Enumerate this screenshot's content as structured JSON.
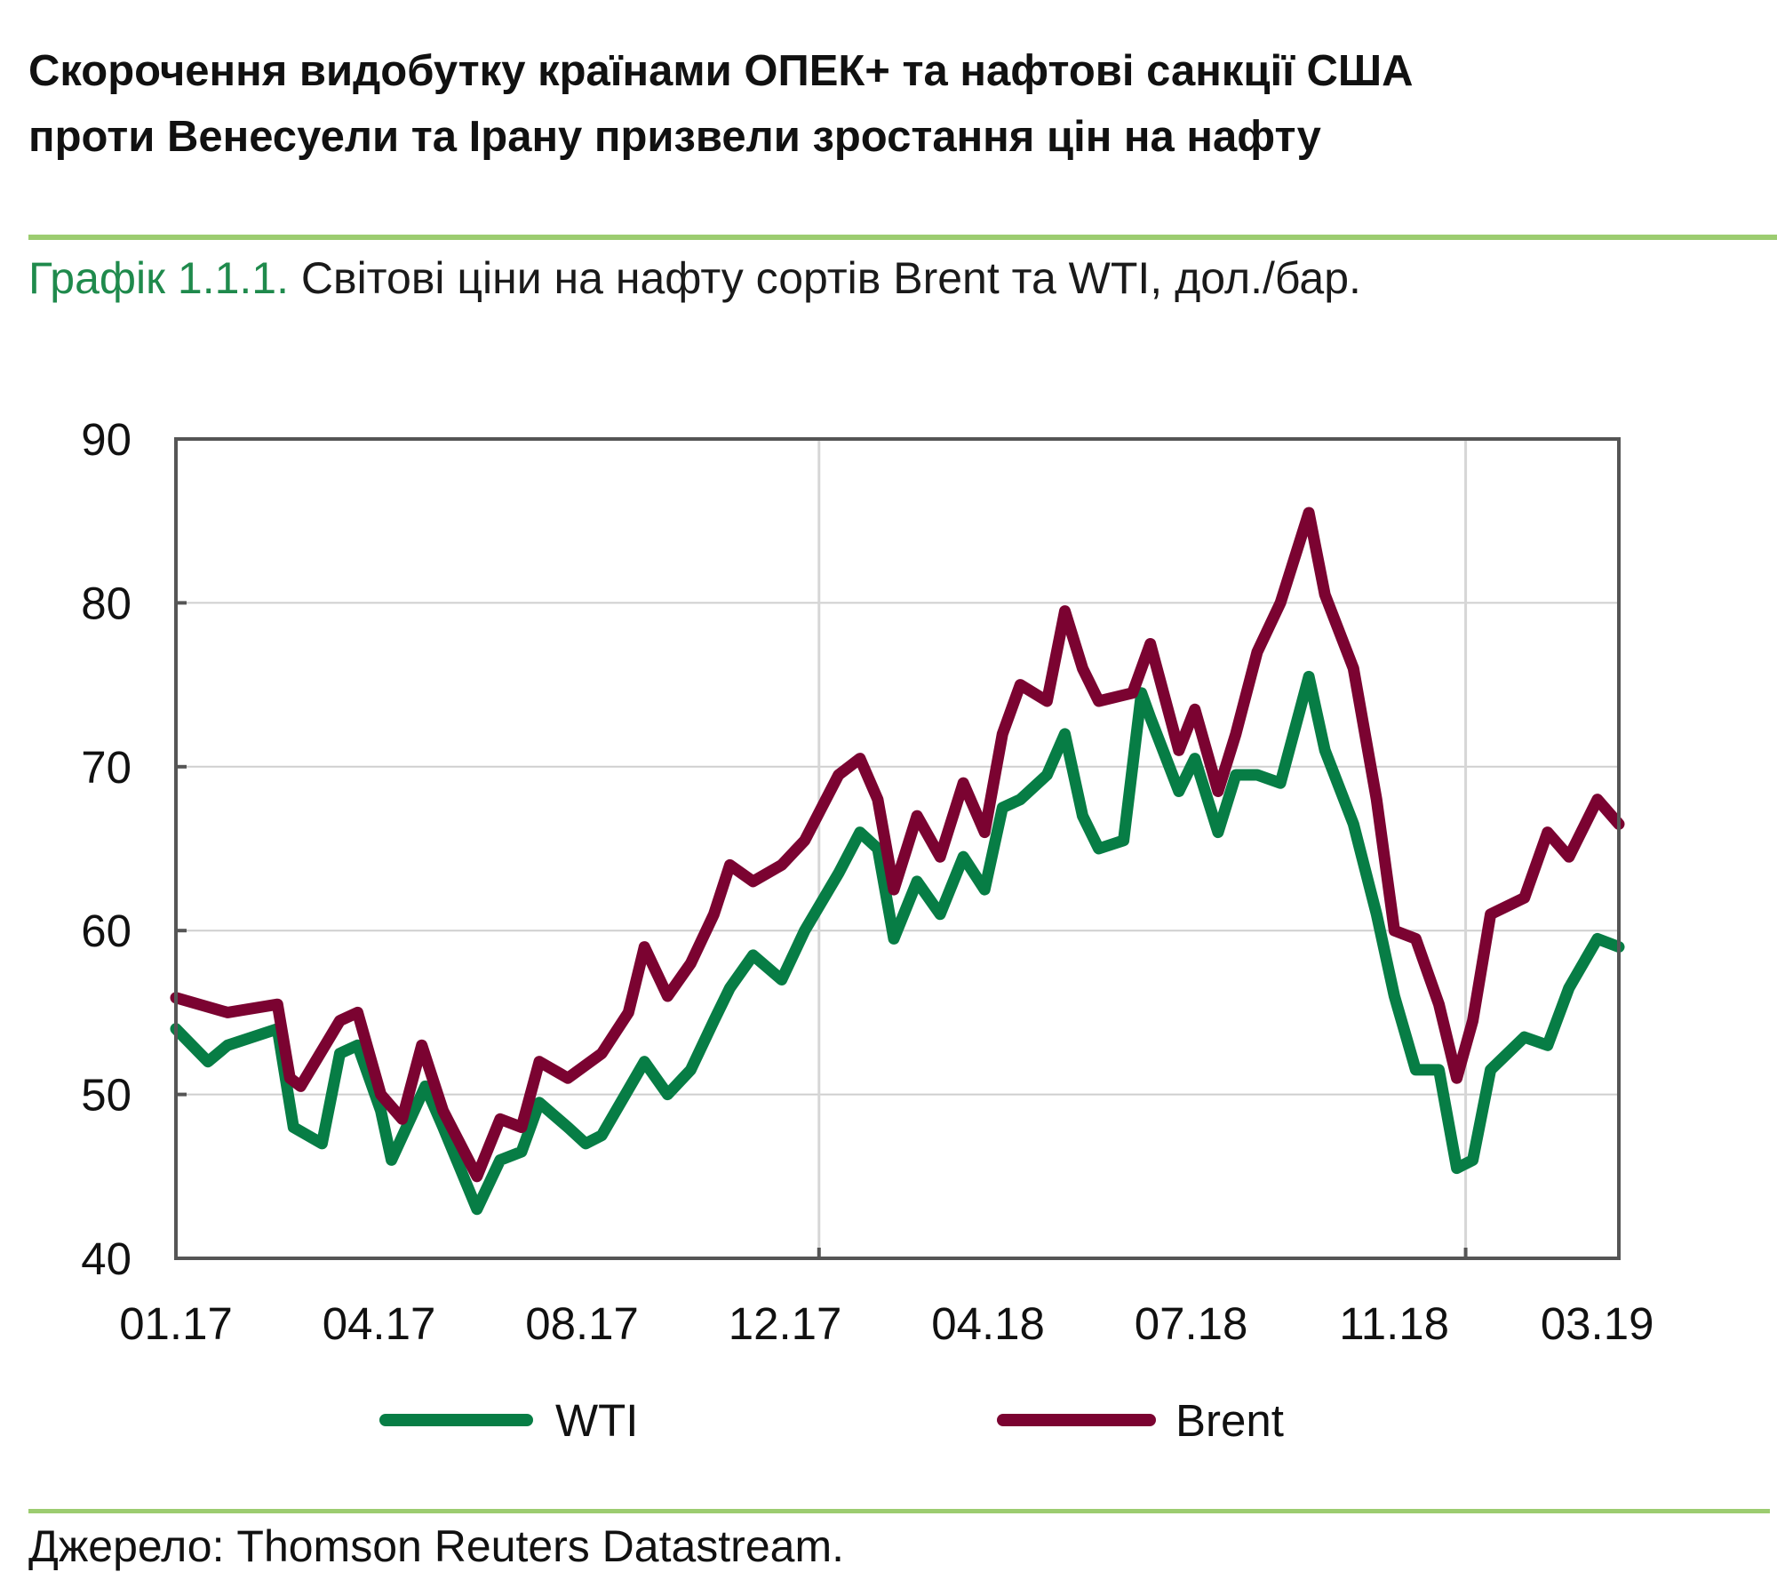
{
  "header": {
    "title_line1": "Скорочення видобутку країнами ОПЕК+  та нафтові санкції США",
    "title_line2": "проти Венесуели та Ірану призвели зростання цін на нафту",
    "figure_prefix": "Графік 1.1.1.",
    "figure_caption": " Світові ціни на нафту сортів Brent та WTI, дол./бар."
  },
  "footer": {
    "source": "Джерело: Thomson Reuters Datastream."
  },
  "colors": {
    "wti": "#077d45",
    "brent": "#7b0331",
    "separator": "#9ccc70",
    "figure_prefix": "#1f8a4c"
  },
  "chart_data": {
    "type": "line",
    "title": "Світові ціни на нафту сортів Brent та WTI, дол./бар.",
    "xlabel": "",
    "ylabel": "",
    "ylim": [
      40,
      90
    ],
    "yticks": [
      "40",
      "50",
      "60",
      "70",
      "80",
      "90"
    ],
    "xlim": [
      "2017-01-02",
      "2019-03-23"
    ],
    "xticks": [
      "01.17",
      "04.17",
      "08.17",
      "12.17",
      "04.18",
      "07.18",
      "11.18",
      "03.19"
    ],
    "vertical_gridlines": [
      "2017-12-29",
      "2018-12-27"
    ],
    "grid": "horizontal",
    "legend_position": "bottom",
    "series": [
      {
        "name": "WTI",
        "color": "#077d45",
        "points": [
          [
            "2017-01-02",
            54
          ],
          [
            "2017-01-20",
            52
          ],
          [
            "2017-01-31",
            53
          ],
          [
            "2017-02-28",
            54
          ],
          [
            "2017-03-09",
            48
          ],
          [
            "2017-03-25",
            47
          ],
          [
            "2017-04-04",
            52.5
          ],
          [
            "2017-04-14",
            53
          ],
          [
            "2017-04-27",
            49
          ],
          [
            "2017-05-03",
            46
          ],
          [
            "2017-05-22",
            50.5
          ],
          [
            "2017-06-01",
            48
          ],
          [
            "2017-06-20",
            43
          ],
          [
            "2017-07-03",
            46
          ],
          [
            "2017-07-15",
            46.5
          ],
          [
            "2017-07-25",
            49.5
          ],
          [
            "2017-08-10",
            48
          ],
          [
            "2017-08-20",
            47
          ],
          [
            "2017-08-29",
            47.5
          ],
          [
            "2017-09-22",
            52
          ],
          [
            "2017-10-05",
            50
          ],
          [
            "2017-10-18",
            51.5
          ],
          [
            "2017-10-31",
            54.5
          ],
          [
            "2017-11-09",
            56.5
          ],
          [
            "2017-11-22",
            58.5
          ],
          [
            "2017-12-08",
            57
          ],
          [
            "2017-12-21",
            60
          ],
          [
            "2018-01-09",
            63.5
          ],
          [
            "2018-01-21",
            66
          ],
          [
            "2018-01-31",
            65
          ],
          [
            "2018-02-09",
            59.5
          ],
          [
            "2018-02-22",
            63
          ],
          [
            "2018-03-07",
            61
          ],
          [
            "2018-03-20",
            64.5
          ],
          [
            "2018-04-01",
            62.5
          ],
          [
            "2018-04-11",
            67.5
          ],
          [
            "2018-04-21",
            68
          ],
          [
            "2018-05-06",
            69.5
          ],
          [
            "2018-05-16",
            72
          ],
          [
            "2018-05-26",
            67
          ],
          [
            "2018-06-04",
            65
          ],
          [
            "2018-06-18",
            65.5
          ],
          [
            "2018-06-28",
            74.5
          ],
          [
            "2018-07-03",
            73
          ],
          [
            "2018-07-19",
            68.5
          ],
          [
            "2018-07-28",
            70.5
          ],
          [
            "2018-08-10",
            66
          ],
          [
            "2018-08-20",
            69.5
          ],
          [
            "2018-09-01",
            69.5
          ],
          [
            "2018-09-14",
            69
          ],
          [
            "2018-09-30",
            75.5
          ],
          [
            "2018-10-09",
            71
          ],
          [
            "2018-10-25",
            66.5
          ],
          [
            "2018-11-07",
            61
          ],
          [
            "2018-11-17",
            56
          ],
          [
            "2018-11-29",
            51.5
          ],
          [
            "2018-12-12",
            51.5
          ],
          [
            "2018-12-22",
            45.5
          ],
          [
            "2018-12-31",
            46
          ],
          [
            "2019-01-10",
            51.5
          ],
          [
            "2019-01-29",
            53.5
          ],
          [
            "2019-02-11",
            53
          ],
          [
            "2019-02-23",
            56.5
          ],
          [
            "2019-03-11",
            59.5
          ],
          [
            "2019-03-23",
            59
          ]
        ]
      },
      {
        "name": "Brent",
        "color": "#7b0331",
        "points": [
          [
            "2017-01-02",
            55.9
          ],
          [
            "2017-01-31",
            55
          ],
          [
            "2017-02-28",
            55.5
          ],
          [
            "2017-03-07",
            51
          ],
          [
            "2017-03-13",
            50.5
          ],
          [
            "2017-04-04",
            54.5
          ],
          [
            "2017-04-14",
            55
          ],
          [
            "2017-04-27",
            50
          ],
          [
            "2017-05-09",
            48.5
          ],
          [
            "2017-05-20",
            53
          ],
          [
            "2017-06-01",
            49
          ],
          [
            "2017-06-20",
            45
          ],
          [
            "2017-07-03",
            48.5
          ],
          [
            "2017-07-15",
            48
          ],
          [
            "2017-07-25",
            52
          ],
          [
            "2017-08-10",
            51
          ],
          [
            "2017-08-29",
            52.5
          ],
          [
            "2017-09-13",
            55
          ],
          [
            "2017-09-22",
            59
          ],
          [
            "2017-10-05",
            56
          ],
          [
            "2017-10-18",
            58
          ],
          [
            "2017-10-31",
            61
          ],
          [
            "2017-11-09",
            64
          ],
          [
            "2017-11-22",
            63
          ],
          [
            "2017-12-08",
            64
          ],
          [
            "2017-12-21",
            65.5
          ],
          [
            "2018-01-09",
            69.5
          ],
          [
            "2018-01-21",
            70.5
          ],
          [
            "2018-01-31",
            68
          ],
          [
            "2018-02-09",
            62.5
          ],
          [
            "2018-02-22",
            67
          ],
          [
            "2018-03-07",
            64.5
          ],
          [
            "2018-03-20",
            69
          ],
          [
            "2018-04-01",
            66
          ],
          [
            "2018-04-11",
            72
          ],
          [
            "2018-04-21",
            75
          ],
          [
            "2018-05-06",
            74
          ],
          [
            "2018-05-16",
            79.5
          ],
          [
            "2018-05-26",
            76
          ],
          [
            "2018-06-04",
            74
          ],
          [
            "2018-06-23",
            74.5
          ],
          [
            "2018-07-03",
            77.5
          ],
          [
            "2018-07-19",
            71
          ],
          [
            "2018-07-28",
            73.5
          ],
          [
            "2018-08-10",
            68.5
          ],
          [
            "2018-08-20",
            72
          ],
          [
            "2018-09-01",
            77
          ],
          [
            "2018-09-14",
            80
          ],
          [
            "2018-09-30",
            85.5
          ],
          [
            "2018-10-09",
            80.5
          ],
          [
            "2018-10-25",
            76
          ],
          [
            "2018-11-07",
            68
          ],
          [
            "2018-11-17",
            60
          ],
          [
            "2018-11-29",
            59.5
          ],
          [
            "2018-12-12",
            55.5
          ],
          [
            "2018-12-22",
            51
          ],
          [
            "2018-12-31",
            54.5
          ],
          [
            "2019-01-10",
            61
          ],
          [
            "2019-01-29",
            62
          ],
          [
            "2019-02-11",
            66
          ],
          [
            "2019-02-23",
            64.5
          ],
          [
            "2019-03-11",
            68
          ],
          [
            "2019-03-23",
            66.5
          ]
        ]
      }
    ]
  }
}
